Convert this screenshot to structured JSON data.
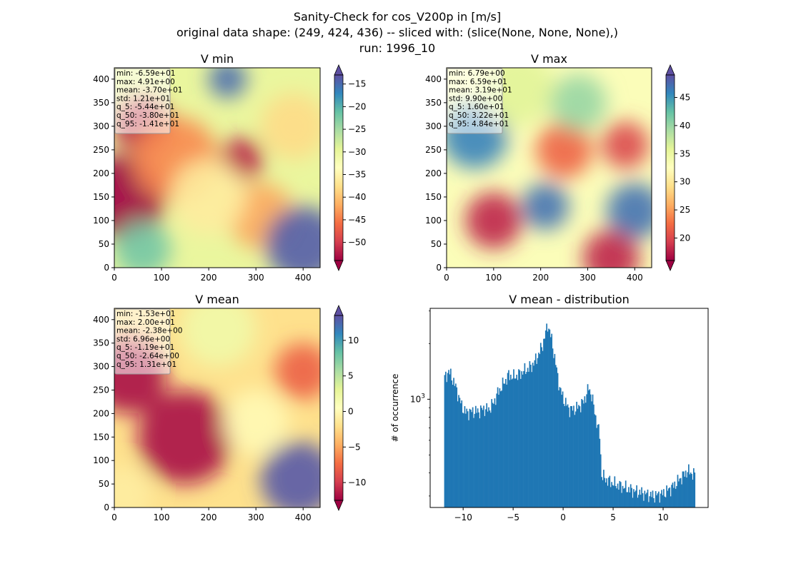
{
  "suptitle": {
    "line1": "Sanity-Check for cos_V200p in [m/s]",
    "line2": "original data shape: (249, 424, 436) -- sliced with: (slice(None, None, None),)",
    "line3": "run: 1996_10"
  },
  "colormap": "Spectral",
  "chart_data": [
    {
      "type": "heatmap",
      "title": "V min",
      "xlim": [
        0,
        436
      ],
      "ylim": [
        0,
        424
      ],
      "xticks": [
        0,
        100,
        200,
        300,
        400
      ],
      "yticks": [
        0,
        50,
        100,
        150,
        200,
        250,
        300,
        350,
        400
      ],
      "colorbar": {
        "range": [
          -54,
          -13
        ],
        "ticks": [
          -50,
          -45,
          -40,
          -35,
          -30,
          -25,
          -20,
          -15
        ],
        "extend": "both"
      },
      "stats": [
        {
          "label": "min",
          "value": "-6.59e+01"
        },
        {
          "label": "max",
          "value": "4.91e+00"
        },
        {
          "label": "mean",
          "value": "-3.70e+01"
        },
        {
          "label": "std",
          "value": "1.21e+01"
        },
        {
          "label": "q_5",
          "value": "-5.44e+01"
        },
        {
          "label": "q_50",
          "value": "-3.80e+01"
        },
        {
          "label": "q_95",
          "value": "-1.41e+01"
        }
      ],
      "field": [
        {
          "x": 20,
          "y": 150,
          "v": -54,
          "r": 90
        },
        {
          "x": 60,
          "y": 300,
          "v": -52,
          "r": 60
        },
        {
          "x": 130,
          "y": 230,
          "v": -44,
          "r": 90
        },
        {
          "x": 270,
          "y": 230,
          "v": -52,
          "r": 45
        },
        {
          "x": 310,
          "y": 110,
          "v": -42,
          "r": 70
        },
        {
          "x": 240,
          "y": 400,
          "v": -15,
          "r": 40
        },
        {
          "x": 400,
          "y": 50,
          "v": -14,
          "r": 80
        },
        {
          "x": 60,
          "y": 40,
          "v": -22,
          "r": 60
        },
        {
          "x": 380,
          "y": 300,
          "v": -38,
          "r": 70
        },
        {
          "x": 200,
          "y": 150,
          "v": -36,
          "r": 80
        }
      ],
      "base": -30
    },
    {
      "type": "heatmap",
      "title": "V max",
      "xlim": [
        0,
        436
      ],
      "ylim": [
        0,
        424
      ],
      "xticks": [
        0,
        100,
        200,
        300,
        400
      ],
      "yticks": [
        0,
        50,
        100,
        150,
        200,
        250,
        300,
        350,
        400
      ],
      "colorbar": {
        "range": [
          16,
          49
        ],
        "ticks": [
          20,
          25,
          30,
          35,
          40,
          45
        ],
        "extend": "both"
      },
      "stats": [
        {
          "label": "min",
          "value": "6.79e+00"
        },
        {
          "label": "max",
          "value": "6.59e+01"
        },
        {
          "label": "mean",
          "value": "3.19e+01"
        },
        {
          "label": "std",
          "value": "9.90e+00"
        },
        {
          "label": "q_5",
          "value": "1.60e+01"
        },
        {
          "label": "q_50",
          "value": "3.22e+01"
        },
        {
          "label": "q_95",
          "value": "4.84e+01"
        }
      ],
      "field": [
        {
          "x": 60,
          "y": 280,
          "v": 46,
          "r": 70
        },
        {
          "x": 210,
          "y": 130,
          "v": 47,
          "r": 50
        },
        {
          "x": 400,
          "y": 120,
          "v": 47,
          "r": 60
        },
        {
          "x": 100,
          "y": 100,
          "v": 18,
          "r": 60
        },
        {
          "x": 350,
          "y": 20,
          "v": 18,
          "r": 60
        },
        {
          "x": 380,
          "y": 260,
          "v": 20,
          "r": 50
        },
        {
          "x": 250,
          "y": 250,
          "v": 22,
          "r": 60
        },
        {
          "x": 150,
          "y": 380,
          "v": 36,
          "r": 80
        },
        {
          "x": 280,
          "y": 350,
          "v": 40,
          "r": 60
        }
      ],
      "base": 33
    },
    {
      "type": "heatmap",
      "title": "V mean",
      "xlim": [
        0,
        436
      ],
      "ylim": [
        0,
        424
      ],
      "xticks": [
        0,
        100,
        200,
        300,
        400
      ],
      "yticks": [
        0,
        50,
        100,
        150,
        200,
        250,
        300,
        350,
        400
      ],
      "colorbar": {
        "range": [
          -12.5,
          13.5
        ],
        "ticks": [
          -10,
          -5,
          0,
          5,
          10
        ],
        "extend": "both"
      },
      "stats": [
        {
          "label": "min",
          "value": "-1.53e+01"
        },
        {
          "label": "max",
          "value": "2.00e+01"
        },
        {
          "label": "mean",
          "value": "-2.38e+00"
        },
        {
          "label": "std",
          "value": "6.96e+00"
        },
        {
          "label": "q_5",
          "value": "-1.19e+01"
        },
        {
          "label": "q_50",
          "value": "-2.64e+00"
        },
        {
          "label": "q_95",
          "value": "1.31e+01"
        }
      ],
      "field": [
        {
          "x": 30,
          "y": 280,
          "v": -12,
          "r": 80
        },
        {
          "x": 150,
          "y": 150,
          "v": -12,
          "r": 100
        },
        {
          "x": 400,
          "y": 290,
          "v": -8,
          "r": 60
        },
        {
          "x": 390,
          "y": 60,
          "v": 13,
          "r": 80
        },
        {
          "x": 220,
          "y": 380,
          "v": 2,
          "r": 80
        },
        {
          "x": 20,
          "y": 30,
          "v": -1,
          "r": 60
        },
        {
          "x": 300,
          "y": 180,
          "v": 0,
          "r": 70
        }
      ],
      "base": -2
    },
    {
      "type": "bar",
      "title": "V mean - distribution",
      "xlabel": "",
      "ylabel": "# of occurrence",
      "yscale": "log",
      "xlim": [
        -13.3,
        14.5
      ],
      "ylim": [
        260,
        3100
      ],
      "xticks": [
        -10,
        -5,
        0,
        5,
        10
      ],
      "yticks": [
        {
          "value": 1000,
          "label": "10^3"
        }
      ],
      "bin_start": -11.9,
      "bin_width": 0.1,
      "counts": [
        {
          "x": -11.9,
          "y": 1300
        },
        {
          "x": -11.5,
          "y": 1420
        },
        {
          "x": -11.0,
          "y": 1250
        },
        {
          "x": -10.6,
          "y": 1080
        },
        {
          "x": -10.2,
          "y": 920
        },
        {
          "x": -9.8,
          "y": 850
        },
        {
          "x": -9.0,
          "y": 860
        },
        {
          "x": -8.5,
          "y": 860
        },
        {
          "x": -8.0,
          "y": 890
        },
        {
          "x": -7.5,
          "y": 880
        },
        {
          "x": -7.0,
          "y": 960
        },
        {
          "x": -6.6,
          "y": 1080
        },
        {
          "x": -6.0,
          "y": 1220
        },
        {
          "x": -5.5,
          "y": 1350
        },
        {
          "x": -5.0,
          "y": 1320
        },
        {
          "x": -4.5,
          "y": 1360
        },
        {
          "x": -4.0,
          "y": 1420
        },
        {
          "x": -3.5,
          "y": 1470
        },
        {
          "x": -3.0,
          "y": 1560
        },
        {
          "x": -2.5,
          "y": 1750
        },
        {
          "x": -2.0,
          "y": 2050
        },
        {
          "x": -1.6,
          "y": 2550
        },
        {
          "x": -1.2,
          "y": 2100
        },
        {
          "x": -0.8,
          "y": 1550
        },
        {
          "x": -0.4,
          "y": 1150
        },
        {
          "x": 0.0,
          "y": 1000
        },
        {
          "x": 0.5,
          "y": 890
        },
        {
          "x": 1.0,
          "y": 880
        },
        {
          "x": 1.5,
          "y": 910
        },
        {
          "x": 2.0,
          "y": 970
        },
        {
          "x": 2.5,
          "y": 1150
        },
        {
          "x": 2.8,
          "y": 1050
        },
        {
          "x": 3.2,
          "y": 800
        },
        {
          "x": 3.6,
          "y": 640
        },
        {
          "x": 3.8,
          "y": 390
        },
        {
          "x": 4.2,
          "y": 370
        },
        {
          "x": 5.0,
          "y": 350
        },
        {
          "x": 6.0,
          "y": 335
        },
        {
          "x": 7.0,
          "y": 320
        },
        {
          "x": 8.0,
          "y": 310
        },
        {
          "x": 9.0,
          "y": 300
        },
        {
          "x": 10.0,
          "y": 310
        },
        {
          "x": 11.0,
          "y": 340
        },
        {
          "x": 11.8,
          "y": 380
        },
        {
          "x": 12.4,
          "y": 410
        },
        {
          "x": 13.1,
          "y": 390
        }
      ],
      "color": "#1f77b4"
    }
  ]
}
